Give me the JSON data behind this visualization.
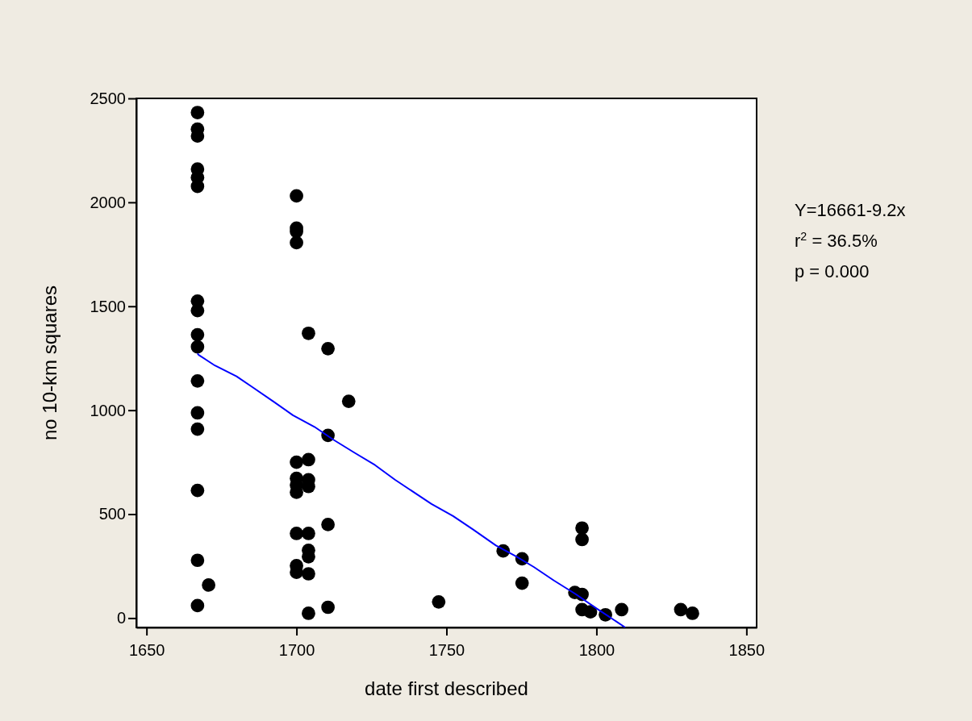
{
  "chart_data": {
    "type": "scatter",
    "xlabel": "date first described",
    "ylabel": "no 10-km squares",
    "xlim": [
      1646.6,
      1853.4
    ],
    "ylim": [
      -45,
      2500
    ],
    "xticks": [
      1650,
      1700,
      1750,
      1800,
      1850
    ],
    "yticks": [
      0,
      500,
      1000,
      1500,
      2000,
      2500
    ],
    "grid": false,
    "annotations": [
      "Y=16661-9.2x",
      "r$^{2}$ = 36.5%",
      "p = 0.000"
    ],
    "series": [
      {
        "color": "#000000",
        "marker": "circle",
        "x": [
          1667,
          1667,
          1667,
          1667,
          1667,
          1667,
          1667,
          1667,
          1667,
          1667,
          1667,
          1667,
          1667,
          1667,
          1667,
          1667,
          1670.7,
          1700,
          1700,
          1700,
          1700,
          1700,
          1700,
          1700,
          1700,
          1700,
          1700,
          1700,
          1704,
          1704,
          1704,
          1704,
          1704,
          1704,
          1704,
          1704,
          1704,
          1710.5,
          1710.5,
          1710.5,
          1710.5,
          1717.4,
          1747.4,
          1768.9,
          1775.2,
          1775.2,
          1792.8,
          1795.2,
          1795.2,
          1795.2,
          1795.2,
          1798,
          1803,
          1808.4,
          1828.1,
          1832
        ],
        "values": [
          2432,
          2352,
          2319,
          2160,
          2119,
          2077,
          1525,
          1479,
          1363,
          1305,
          1141,
          987,
          909,
          614,
          278,
          60,
          159,
          2031,
          1876,
          1860,
          1806,
          750,
          672,
          640,
          605,
          407,
          252,
          220,
          1370,
          762,
          665,
          633,
          407,
          326,
          295,
          213,
          23,
          1296,
          879,
          450,
          52,
          1043,
          78,
          323,
          285,
          168,
          123,
          433,
          378,
          114,
          41,
          30,
          16,
          41,
          41,
          23
        ]
      },
      {
        "type": "line",
        "color": "#0000ff",
        "marker": "none",
        "x": [
          1667,
          1667.4,
          1672.8,
          1680,
          1685.3,
          1692.5,
          1698.8,
          1706,
          1712.2,
          1719.4,
          1726.2,
          1732.9,
          1745,
          1752.2,
          1758.9,
          1766.5,
          1773.2,
          1779.1,
          1785.8,
          1793,
          1800.2,
          1809.6
        ],
        "values": [
          1273,
          1266,
          1215,
          1163,
          1111,
          1040,
          976,
          920,
          859,
          795,
          736,
          665,
          549,
          491,
          426,
          349,
          297,
          246,
          181,
          116,
          45,
          -45
        ]
      }
    ]
  }
}
